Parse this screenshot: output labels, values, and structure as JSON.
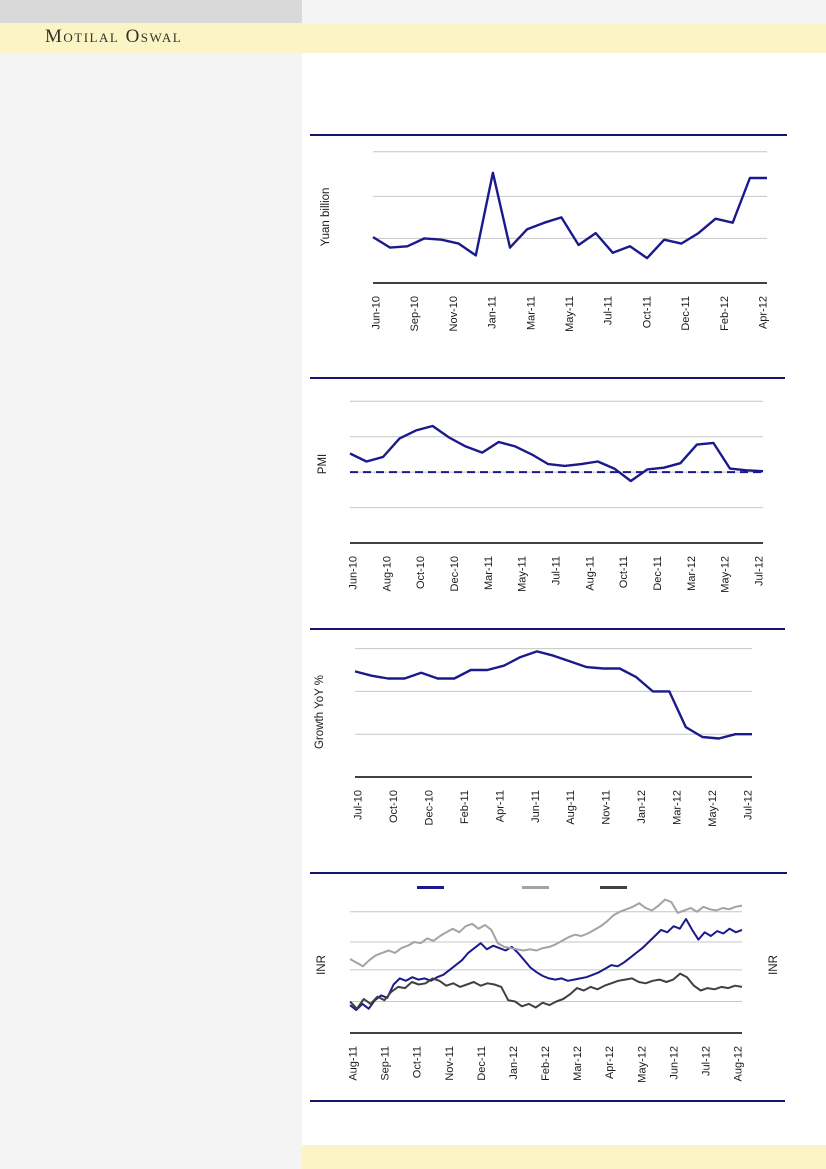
{
  "header": {
    "brand": "Motilal Oswal",
    "banner_color": "#fbf5c6"
  },
  "footer": {
    "color": "#fbf5c6"
  },
  "colors": {
    "separator_navy": "#15156b",
    "series_navy": "#1a1a8c",
    "series_gray": "#a3a3a3",
    "series_dark": "#404040",
    "gridline": "#c6c6c6",
    "axis": "#000000",
    "sidebar_gray": "#f4f4f4",
    "topbar_gray": "#d9d9d9"
  },
  "chart_data": [
    {
      "type": "line",
      "y_axis_label": "Yuan billion",
      "x_labels": [
        "Jun-10",
        "Sep-10",
        "Nov-10",
        "Jan-11",
        "Mar-11",
        "May-11",
        "Jul-11",
        "Oct-11",
        "Dec-11",
        "Feb-12",
        "Apr-12"
      ],
      "ylim": [
        0,
        109
      ],
      "gridlines": [
        34,
        66,
        100
      ],
      "series": [
        {
          "color": "#1a1a8c",
          "width": 2.4,
          "values": [
            35,
            27,
            28,
            34,
            33,
            30,
            21,
            84,
            27,
            41,
            46,
            50,
            29,
            38,
            23,
            28,
            19,
            33,
            30,
            38,
            49,
            46,
            80,
            80
          ]
        }
      ]
    },
    {
      "type": "line",
      "y_axis_label": "PMI",
      "x_labels": [
        "Jun-10",
        "Aug-10",
        "Oct-10",
        "Dec-10",
        "Mar-11",
        "May-11",
        "Jul-11",
        "Aug-11",
        "Oct-11",
        "Dec-11",
        "Mar-12",
        "May-12",
        "Jul-12"
      ],
      "ylim": [
        42,
        58.7
      ],
      "gridlines": [
        58,
        54,
        50,
        46
      ],
      "threshold": 50,
      "series": [
        {
          "color": "#1a1a8c",
          "width": 2.4,
          "values": [
            52.1,
            51.2,
            51.7,
            53.8,
            54.7,
            55.2,
            53.9,
            52.9,
            52.2,
            53.4,
            52.9,
            52.0,
            50.9,
            50.7,
            50.9,
            51.2,
            50.4,
            49.0,
            50.3,
            50.5,
            51.0,
            53.1,
            53.3,
            50.4,
            50.2,
            50.1
          ]
        }
      ]
    },
    {
      "type": "line",
      "y_axis_label": "Growth YoY %",
      "x_labels": [
        "Jul-10",
        "Oct-10",
        "Dec-10",
        "Feb-11",
        "Apr-11",
        "Jun-11",
        "Aug-11",
        "Nov-11",
        "Jan-12",
        "Mar-12",
        "May-12",
        "Jul-12"
      ],
      "ylim": [
        6,
        15.6
      ],
      "gridlines": [
        15,
        12,
        9
      ],
      "series": [
        {
          "color": "#1a1a8c",
          "width": 2.4,
          "values": [
            13.4,
            13.1,
            12.9,
            12.9,
            13.3,
            12.9,
            12.9,
            13.5,
            13.5,
            13.8,
            14.4,
            14.8,
            14.5,
            14.1,
            13.7,
            13.6,
            13.6,
            13.0,
            12.0,
            12.0,
            9.5,
            8.8,
            8.7,
            9.0,
            9.0
          ]
        }
      ]
    },
    {
      "type": "line",
      "y_axis_label": "INR",
      "y_axis_label_right": "INR",
      "x_labels": [
        "Aug-11",
        "Sep-11",
        "Oct-11",
        "Nov-11",
        "Dec-11",
        "Jan-12",
        "Feb-12",
        "Mar-12",
        "Apr-12",
        "May-12",
        "Jun-12",
        "Jul-12",
        "Aug-12"
      ],
      "ylim": [
        0,
        122
      ],
      "gridlines": [
        100,
        75,
        52,
        26
      ],
      "legend": {
        "swatch_colors": [
          "#1a1a8c",
          "#a3a3a3",
          "#404040"
        ]
      },
      "series": [
        {
          "color": "#1a1a8c",
          "width": 2,
          "values": [
            23,
            19,
            24,
            20,
            27,
            31,
            29,
            40,
            45,
            43,
            46,
            44,
            45,
            43,
            46,
            48,
            52,
            56,
            60,
            66,
            70,
            74,
            69,
            72,
            70,
            68,
            71,
            66,
            60,
            54,
            50,
            47,
            45,
            44,
            45,
            43,
            44,
            45,
            46,
            48,
            50,
            53,
            56,
            55,
            58,
            62,
            66,
            70,
            75,
            80,
            85,
            83,
            88,
            86,
            94,
            85,
            77,
            83,
            80,
            84,
            82,
            86,
            83,
            85
          ]
        },
        {
          "color": "#a3a3a3",
          "width": 2,
          "values": [
            61,
            58,
            55,
            60,
            64,
            66,
            68,
            66,
            70,
            72,
            75,
            74,
            78,
            76,
            80,
            83,
            86,
            83,
            88,
            90,
            86,
            89,
            85,
            74,
            71,
            70,
            69,
            68,
            69,
            68,
            70,
            71,
            73,
            76,
            79,
            81,
            80,
            82,
            85,
            88,
            92,
            97,
            100,
            102,
            104,
            107,
            103,
            101,
            105,
            110,
            108,
            99,
            101,
            103,
            100,
            104,
            102,
            101,
            103,
            102,
            104,
            105
          ]
        },
        {
          "color": "#404040",
          "width": 2,
          "values": [
            26,
            20,
            28,
            24,
            30,
            27,
            34,
            38,
            37,
            42,
            40,
            41,
            45,
            43,
            39,
            41,
            38,
            40,
            42,
            39,
            41,
            40,
            38,
            27,
            26,
            22,
            24,
            21,
            25,
            23,
            26,
            28,
            32,
            37,
            35,
            38,
            36,
            39,
            41,
            43,
            44,
            45,
            42,
            41,
            43,
            44,
            42,
            44,
            49,
            46,
            39,
            35,
            37,
            36,
            38,
            37,
            39,
            38
          ]
        }
      ]
    }
  ]
}
